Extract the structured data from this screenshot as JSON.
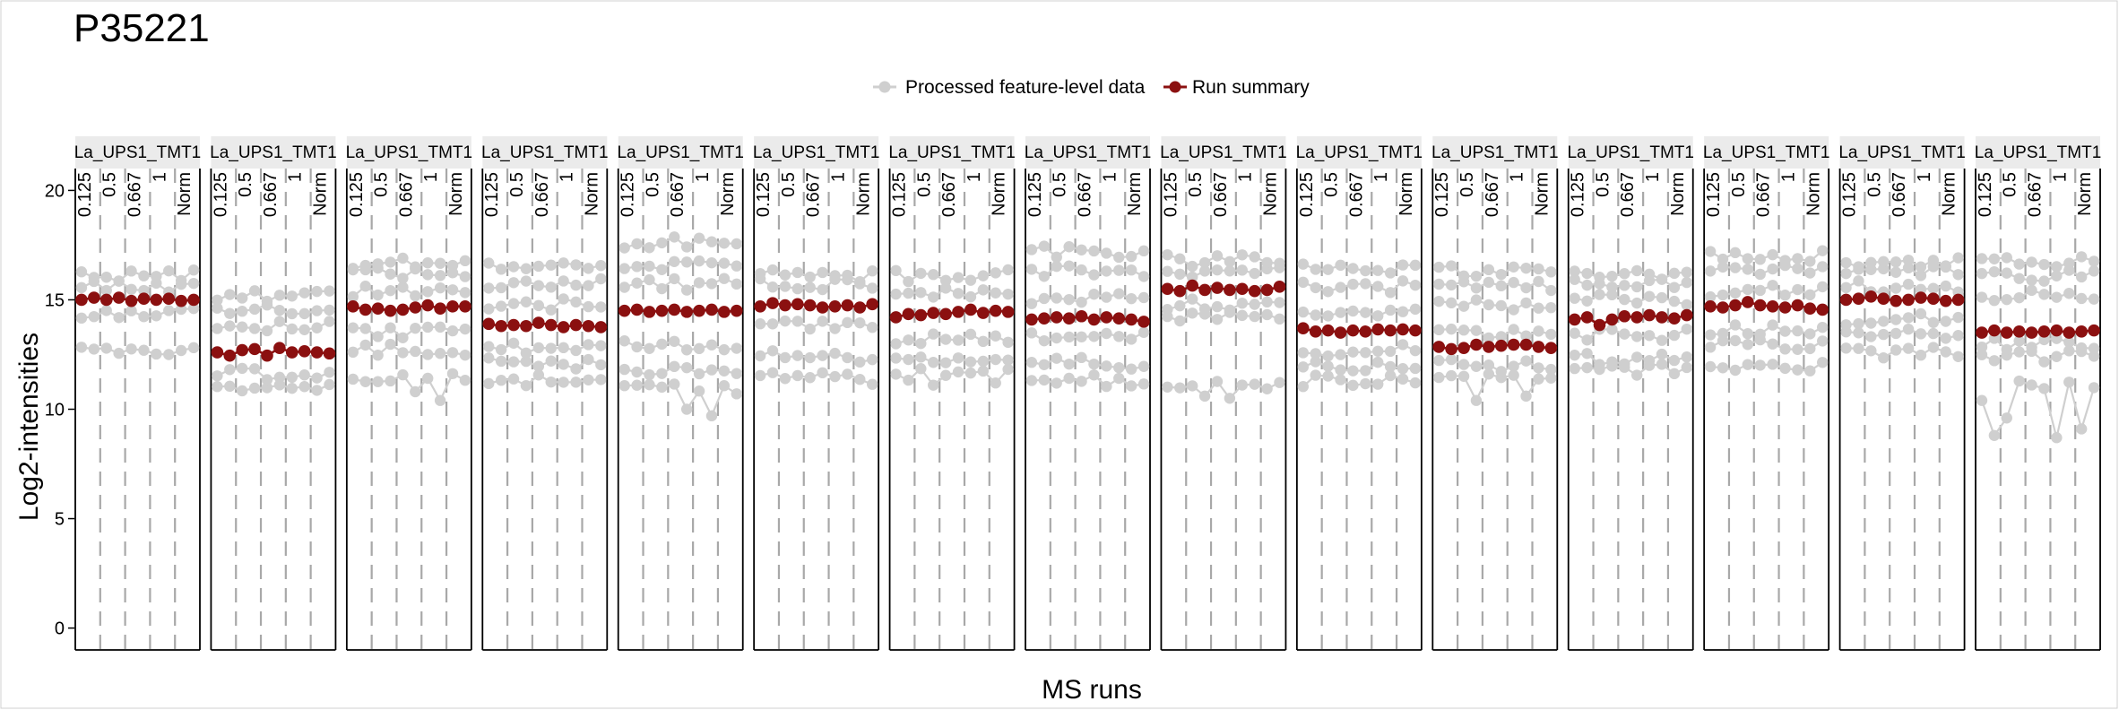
{
  "chart_data": {
    "type": "line",
    "title": "P35221",
    "xlabel": "MS runs",
    "ylabel": "Log2-intensities",
    "ylim": [
      -1,
      21
    ],
    "yticks": [
      0,
      5,
      10,
      15,
      20
    ],
    "grid": false,
    "legend_position": "top",
    "legend": [
      {
        "label": "Processed feature-level data",
        "color": "#cfcfcf"
      },
      {
        "label": "Run summary",
        "color": "#8b1010"
      }
    ],
    "conditions": [
      "0.125",
      "0.5",
      "0.667",
      "1",
      "Norm"
    ],
    "channels_per_run": 10,
    "runs": [
      {
        "strip": "La_UPS1_TMT1",
        "summary": [
          15.0,
          15.1,
          15.0,
          15.1,
          14.95,
          15.05,
          15.0,
          15.05,
          14.95,
          15.0
        ],
        "feature_levels": [
          12.7,
          14.4,
          15.6,
          16.1
        ],
        "dips": []
      },
      {
        "strip": "La_UPS1_TMT1",
        "summary": [
          12.6,
          12.45,
          12.7,
          12.75,
          12.45,
          12.8,
          12.6,
          12.65,
          12.6,
          12.55
        ],
        "feature_levels": [
          11.0,
          11.6,
          13.8,
          14.6,
          15.2
        ],
        "dips": []
      },
      {
        "strip": "La_UPS1_TMT1",
        "summary": [
          14.7,
          14.55,
          14.6,
          14.5,
          14.55,
          14.65,
          14.75,
          14.6,
          14.7,
          14.7
        ],
        "feature_levels": [
          11.4,
          12.7,
          13.5,
          15.4,
          16.2,
          16.7
        ],
        "dips": [
          [
            5,
            10.8
          ],
          [
            7,
            10.4
          ]
        ]
      },
      {
        "strip": "La_UPS1_TMT1",
        "summary": [
          13.9,
          13.8,
          13.85,
          13.8,
          13.95,
          13.85,
          13.75,
          13.85,
          13.8,
          13.75
        ],
        "feature_levels": [
          11.3,
          12.1,
          12.8,
          14.8,
          15.7,
          16.5
        ],
        "dips": []
      },
      {
        "strip": "La_UPS1_TMT1",
        "summary": [
          14.5,
          14.55,
          14.45,
          14.5,
          14.55,
          14.45,
          14.5,
          14.55,
          14.45,
          14.5
        ],
        "feature_levels": [
          10.9,
          11.8,
          12.9,
          15.7,
          16.6,
          17.6
        ],
        "dips": [
          [
            5,
            10.0
          ],
          [
            7,
            9.7
          ]
        ]
      },
      {
        "strip": "La_UPS1_TMT1",
        "summary": [
          14.7,
          14.85,
          14.75,
          14.8,
          14.75,
          14.65,
          14.7,
          14.75,
          14.65,
          14.8
        ],
        "feature_levels": [
          11.4,
          12.4,
          13.8,
          15.7,
          16.1
        ],
        "dips": []
      },
      {
        "strip": "La_UPS1_TMT1",
        "summary": [
          14.2,
          14.35,
          14.3,
          14.4,
          14.35,
          14.45,
          14.55,
          14.4,
          14.5,
          14.45
        ],
        "feature_levels": [
          11.6,
          12.3,
          13.2,
          15.3,
          16.1
        ],
        "dips": [
          [
            3,
            11.1
          ],
          [
            8,
            11.2
          ]
        ]
      },
      {
        "strip": "La_UPS1_TMT1",
        "summary": [
          14.1,
          14.15,
          14.2,
          14.15,
          14.25,
          14.1,
          14.2,
          14.15,
          14.1,
          14.0
        ],
        "feature_levels": [
          11.3,
          12.1,
          13.3,
          15.1,
          16.3,
          17.2
        ],
        "dips": []
      },
      {
        "strip": "La_UPS1_TMT1",
        "summary": [
          15.5,
          15.4,
          15.65,
          15.45,
          15.55,
          15.45,
          15.5,
          15.4,
          15.45,
          15.6
        ],
        "feature_levels": [
          11.0,
          14.2,
          14.8,
          16.3,
          16.8
        ],
        "dips": [
          [
            3,
            10.6
          ],
          [
            5,
            10.5
          ]
        ]
      },
      {
        "strip": "La_UPS1_TMT1",
        "summary": [
          13.7,
          13.55,
          13.6,
          13.5,
          13.6,
          13.55,
          13.65,
          13.6,
          13.65,
          13.6
        ],
        "feature_levels": [
          11.3,
          12.0,
          12.7,
          14.4,
          15.6,
          16.5
        ],
        "dips": []
      },
      {
        "strip": "La_UPS1_TMT1",
        "summary": [
          12.85,
          12.75,
          12.8,
          12.95,
          12.85,
          12.9,
          12.95,
          12.95,
          12.85,
          12.8
        ],
        "feature_levels": [
          11.4,
          12.0,
          13.5,
          14.8,
          15.7,
          16.3
        ],
        "dips": [
          [
            3,
            10.4
          ],
          [
            7,
            10.6
          ]
        ]
      },
      {
        "strip": "La_UPS1_TMT1",
        "summary": [
          14.1,
          14.2,
          13.85,
          14.1,
          14.25,
          14.2,
          14.3,
          14.2,
          14.15,
          14.3
        ],
        "feature_levels": [
          11.8,
          12.3,
          13.4,
          15.0,
          15.7,
          16.2
        ],
        "dips": []
      },
      {
        "strip": "La_UPS1_TMT1",
        "summary": [
          14.7,
          14.65,
          14.75,
          14.9,
          14.75,
          14.7,
          14.65,
          14.75,
          14.6,
          14.55
        ],
        "feature_levels": [
          12.0,
          13.0,
          13.6,
          15.4,
          16.3,
          17.0
        ],
        "dips": []
      },
      {
        "strip": "La_UPS1_TMT1",
        "summary": [
          15.0,
          15.05,
          15.15,
          15.05,
          14.95,
          15.0,
          15.1,
          15.05,
          14.95,
          15.0
        ],
        "feature_levels": [
          12.6,
          13.4,
          14.1,
          15.6,
          16.3,
          16.7
        ],
        "dips": []
      },
      {
        "strip": "La_UPS1_TMT1",
        "summary": [
          13.5,
          13.6,
          13.5,
          13.55,
          13.5,
          13.55,
          13.6,
          13.5,
          13.55,
          13.6
        ],
        "feature_levels": [
          11.2,
          12.4,
          13.0,
          15.2,
          16.1,
          16.7
        ],
        "dips": [
          [
            0,
            10.4
          ],
          [
            1,
            8.8
          ],
          [
            2,
            9.6
          ],
          [
            6,
            8.7
          ],
          [
            8,
            9.1
          ]
        ]
      }
    ]
  }
}
